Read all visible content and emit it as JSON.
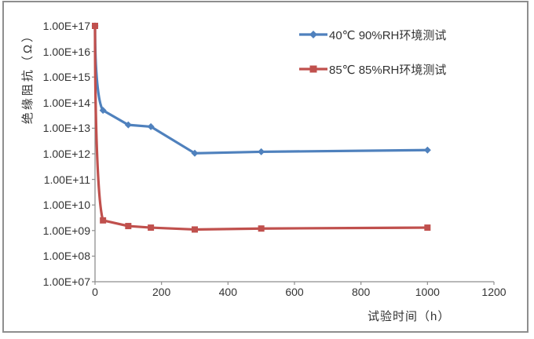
{
  "chart_data": {
    "type": "line",
    "title": "",
    "xlabel": "试验时间（h）",
    "ylabel": "绝缘阻抗（Ω）",
    "x_axis": {
      "min": 0,
      "max": 1200,
      "tick_values": [
        0,
        200,
        400,
        600,
        800,
        1000,
        1200
      ]
    },
    "y_axis": {
      "scale": "log",
      "min": 10000000.0,
      "max": 1e+17,
      "tick_labels": [
        "1.00E+17",
        "1.00E+16",
        "1.00E+15",
        "1.00E+14",
        "1.00E+13",
        "1.00E+12",
        "1.00E+11",
        "1.00E+10",
        "1.00E+09",
        "1.00E+08",
        "1.00E+07"
      ]
    },
    "grid": false,
    "legend_position": "top-right",
    "series": [
      {
        "name": "40℃ 90%RH环境测试",
        "color": "#4f81bd",
        "marker": "diamond",
        "x": [
          0,
          24,
          100,
          168,
          300,
          500,
          1000
        ],
        "y": [
          1e+17,
          50000000000000.0,
          13500000000000.0,
          11500000000000.0,
          1050000000000.0,
          1200000000000.0,
          1400000000000.0
        ]
      },
      {
        "name": "85℃ 85%RH环境测试",
        "color": "#c0504d",
        "marker": "square",
        "x": [
          0,
          24,
          100,
          168,
          300,
          500,
          1000
        ],
        "y": [
          1e+17,
          2500000000.0,
          1500000000.0,
          1300000000.0,
          1100000000.0,
          1200000000.0,
          1300000000.0
        ]
      }
    ],
    "axis_color": "#8e8e8e",
    "text_color": "#333333"
  }
}
